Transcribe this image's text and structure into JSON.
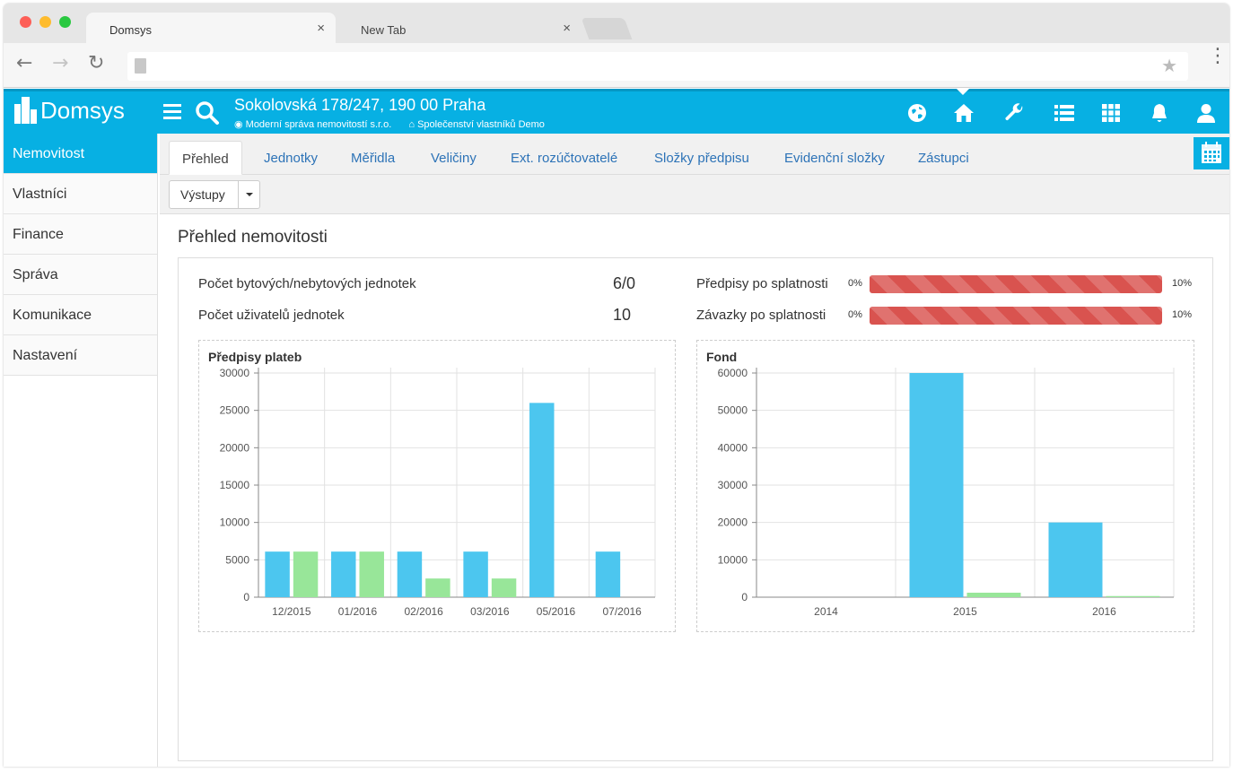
{
  "browser": {
    "tabs": [
      {
        "label": "Domsys",
        "active": true
      },
      {
        "label": "New Tab",
        "active": false
      }
    ],
    "close_glyph": "×"
  },
  "app": {
    "logo_text": "Domsys",
    "address_title": "Sokolovská 178/247, 190 00 Praha",
    "subtitle_company": "Moderní správa nemovitostí s.r.o.",
    "subtitle_association": "Společenství vlastníků Demo",
    "accent_color": "#07b0e3",
    "header_icons": [
      "globe-icon",
      "home-icon",
      "wrench-icon",
      "list-icon",
      "grid-icon",
      "bell-icon",
      "user-icon"
    ]
  },
  "sidebar": {
    "items": [
      {
        "label": "Nemovitost",
        "active": true
      },
      {
        "label": "Vlastníci",
        "active": false
      },
      {
        "label": "Finance",
        "active": false
      },
      {
        "label": "Správa",
        "active": false
      },
      {
        "label": "Komunikace",
        "active": false
      },
      {
        "label": "Nastavení",
        "active": false
      }
    ]
  },
  "tabs": [
    {
      "label": "Přehled",
      "active": true
    },
    {
      "label": "Jednotky",
      "active": false
    },
    {
      "label": "Měřidla",
      "active": false
    },
    {
      "label": "Veličiny",
      "active": false
    },
    {
      "label": "Ext. rozúčtovatelé",
      "active": false
    },
    {
      "label": "Složky předpisu",
      "active": false
    },
    {
      "label": "Evidenční složky",
      "active": false
    },
    {
      "label": "Zástupci",
      "active": false
    }
  ],
  "actions": {
    "outputs_label": "Výstupy"
  },
  "overview": {
    "title": "Přehled nemovitosti",
    "stats": [
      {
        "label": "Počet bytových/nebytových jednotek",
        "value": "6/0"
      },
      {
        "label": "Počet uživatelů jednotek",
        "value": "10"
      }
    ],
    "progress": [
      {
        "label": "Předpisy po splatnosti",
        "min_label": "0%",
        "max_label": "10%",
        "fill": 1.0,
        "color": "#d9534f"
      },
      {
        "label": "Závazky po splatnosti",
        "min_label": "0%",
        "max_label": "10%",
        "fill": 1.0,
        "color": "#d9534f"
      }
    ]
  },
  "chart_data": [
    {
      "type": "bar",
      "title": "Předpisy plateb",
      "categories": [
        "12/2015",
        "01/2016",
        "02/2016",
        "03/2016",
        "05/2016",
        "07/2016"
      ],
      "series": [
        {
          "values": [
            6100,
            6100,
            6100,
            6100,
            26000,
            6100
          ],
          "color": "#4cc6ef"
        },
        {
          "values": [
            6100,
            6100,
            2500,
            2500,
            0,
            0
          ],
          "color": "#98e699"
        }
      ],
      "ylim": [
        0,
        30000
      ],
      "yticks": [
        0,
        5000,
        10000,
        15000,
        20000,
        25000,
        30000
      ],
      "grid": true
    },
    {
      "type": "bar",
      "title": "Fond",
      "categories": [
        "2014",
        "2015",
        "2016"
      ],
      "series": [
        {
          "values": [
            0,
            60000,
            20000
          ],
          "color": "#4cc6ef"
        },
        {
          "values": [
            0,
            1200,
            300
          ],
          "color": "#98e699"
        }
      ],
      "ylim": [
        0,
        60000
      ],
      "yticks": [
        0,
        10000,
        20000,
        30000,
        40000,
        50000,
        60000
      ],
      "grid": true
    }
  ]
}
